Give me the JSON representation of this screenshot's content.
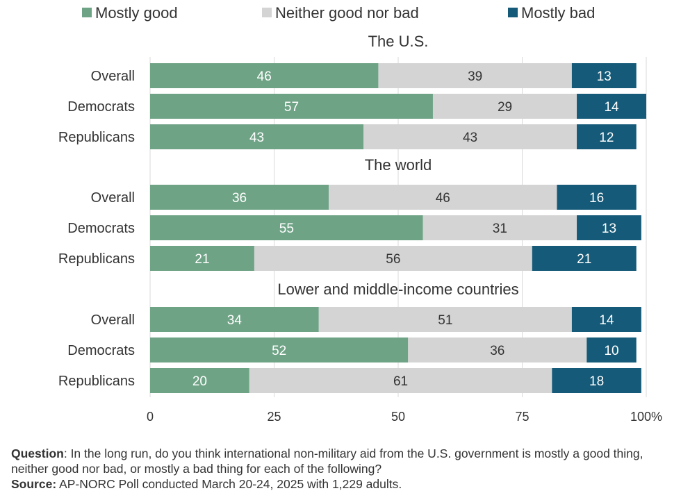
{
  "colors": {
    "good": "#6fa386",
    "neither": "#d4d4d4",
    "bad": "#155a78",
    "grid": "#d9d9d9",
    "label_light": "#ffffff",
    "label_dark": "#333333"
  },
  "chart_data": {
    "type": "bar",
    "orientation": "horizontal",
    "stacked": true,
    "series": [
      {
        "name": "Mostly good",
        "key": "good"
      },
      {
        "name": "Neither good nor bad",
        "key": "neither"
      },
      {
        "name": "Mostly bad",
        "key": "bad"
      }
    ],
    "groups": [
      {
        "title": "The U.S.",
        "rows": [
          {
            "label": "Overall",
            "values": [
              46,
              39,
              13
            ]
          },
          {
            "label": "Democrats",
            "values": [
              57,
              29,
              14
            ]
          },
          {
            "label": "Republicans",
            "values": [
              43,
              43,
              12
            ]
          }
        ]
      },
      {
        "title": "The world",
        "rows": [
          {
            "label": "Overall",
            "values": [
              36,
              46,
              16
            ]
          },
          {
            "label": "Democrats",
            "values": [
              55,
              31,
              13
            ]
          },
          {
            "label": "Republicans",
            "values": [
              21,
              56,
              21
            ]
          }
        ]
      },
      {
        "title": "Lower and middle-income countries",
        "rows": [
          {
            "label": "Overall",
            "values": [
              34,
              51,
              14
            ]
          },
          {
            "label": "Democrats",
            "values": [
              52,
              36,
              10
            ]
          },
          {
            "label": "Republicans",
            "values": [
              20,
              61,
              18
            ]
          }
        ]
      }
    ],
    "xlim": [
      0,
      100
    ],
    "xticks": [
      0,
      25,
      50,
      75,
      100
    ],
    "xtick_labels": [
      "0",
      "25",
      "50",
      "75",
      "100%"
    ],
    "grid": true,
    "legend_position": "top"
  },
  "footer": {
    "question_label": "Question",
    "question_text": ": In the long run, do you think international non-military aid from the U.S. government is mostly a good thing, neither good nor bad, or mostly a bad thing for each of the following?",
    "source_label": "Source:",
    "source_text": " AP-NORC Poll conducted March 20-24, 2025 with 1,229 adults."
  }
}
